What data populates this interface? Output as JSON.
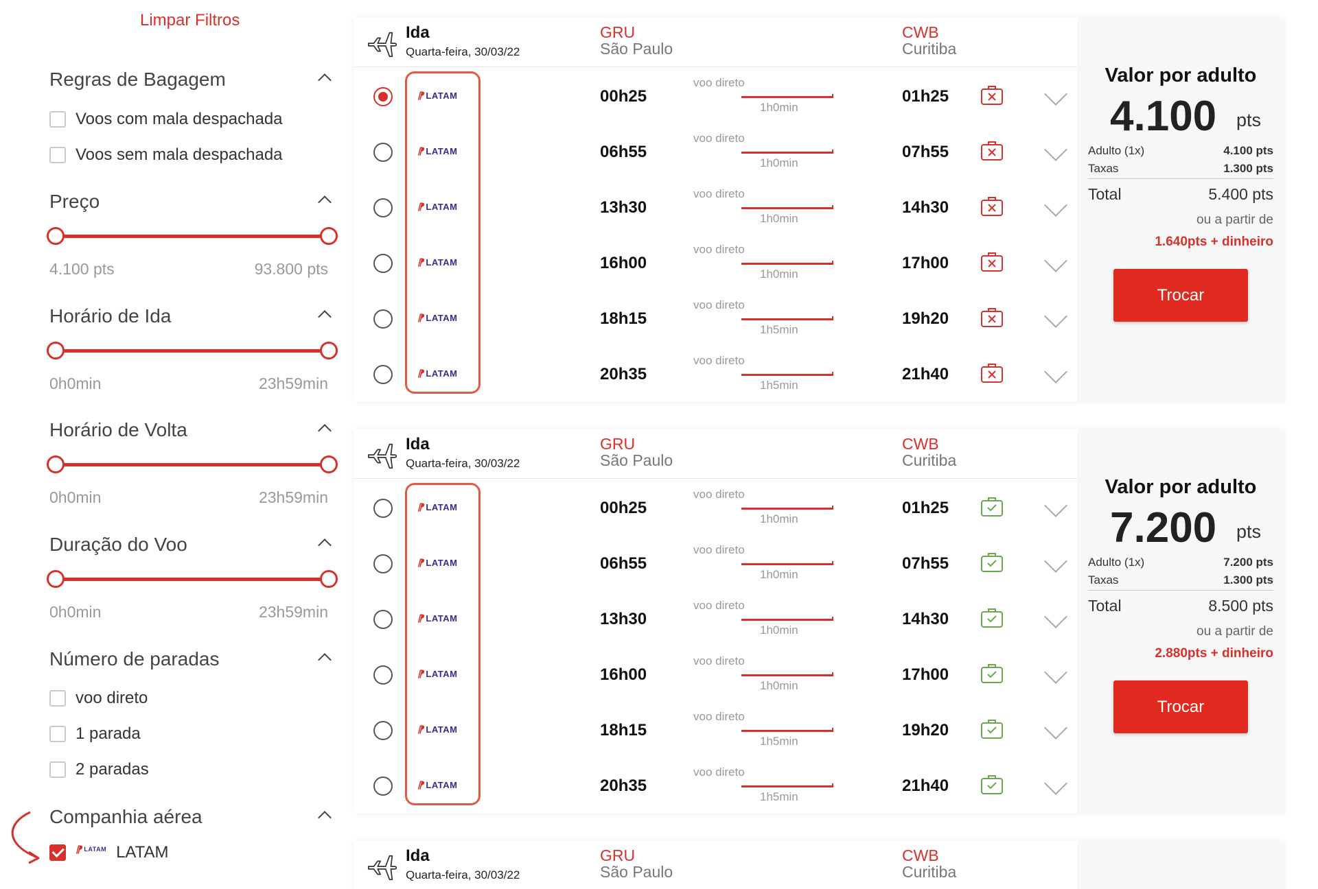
{
  "sidebar": {
    "clear_filters": "Limpar Filtros",
    "baggage": {
      "title": "Regras de Bagagem",
      "options": [
        "Voos com mala despachada",
        "Voos sem mala despachada"
      ]
    },
    "price": {
      "title": "Preço",
      "min": "4.100 pts",
      "max": "93.800 pts"
    },
    "departure_time": {
      "title": "Horário de Ida",
      "min": "0h0min",
      "max": "23h59min"
    },
    "return_time": {
      "title": "Horário de Volta",
      "min": "0h0min",
      "max": "23h59min"
    },
    "duration": {
      "title": "Duração do Voo",
      "min": "0h0min",
      "max": "23h59min"
    },
    "stops": {
      "title": "Número de paradas",
      "options": [
        "voo direto",
        "1 parada",
        "2 paradas"
      ]
    },
    "airline": {
      "title": "Companhia aérea",
      "option": "LATAM",
      "checked": true
    }
  },
  "logo_text": "LATAM",
  "colors": {
    "accent": "#d6312b",
    "bag_excluded": "#d6312b",
    "bag_included": "#6aa84f"
  },
  "cards": [
    {
      "label": "Ida",
      "date": "Quarta-feira, 30/03/22",
      "origin_code": "GRU",
      "origin_city": "São Paulo",
      "dest_code": "CWB",
      "dest_city": "Curitiba",
      "bag_icon": "baggage-excluded-icon",
      "flights": [
        {
          "dep": "00h25",
          "arr": "01h25",
          "stops": "voo direto",
          "duration": "1h0min",
          "selected": true
        },
        {
          "dep": "06h55",
          "arr": "07h55",
          "stops": "voo direto",
          "duration": "1h0min",
          "selected": false
        },
        {
          "dep": "13h30",
          "arr": "14h30",
          "stops": "voo direto",
          "duration": "1h0min",
          "selected": false
        },
        {
          "dep": "16h00",
          "arr": "17h00",
          "stops": "voo direto",
          "duration": "1h0min",
          "selected": false
        },
        {
          "dep": "18h15",
          "arr": "19h20",
          "stops": "voo direto",
          "duration": "1h5min",
          "selected": false
        },
        {
          "dep": "20h35",
          "arr": "21h40",
          "stops": "voo direto",
          "duration": "1h5min",
          "selected": false
        }
      ],
      "price": {
        "title": "Valor por adulto",
        "value": "4.100",
        "unit": "pts",
        "adult_label": "Adulto (1x)",
        "adult_value": "4.100 pts",
        "tax_label": "Taxas",
        "tax_value": "1.300 pts",
        "total_label": "Total",
        "total_value": "5.400 pts",
        "or_label": "ou a partir de",
        "cash_value": "1.640pts + dinheiro",
        "button": "Trocar"
      }
    },
    {
      "label": "Ida",
      "date": "Quarta-feira, 30/03/22",
      "origin_code": "GRU",
      "origin_city": "São Paulo",
      "dest_code": "CWB",
      "dest_city": "Curitiba",
      "bag_icon": "baggage-included-icon",
      "flights": [
        {
          "dep": "00h25",
          "arr": "01h25",
          "stops": "voo direto",
          "duration": "1h0min",
          "selected": false
        },
        {
          "dep": "06h55",
          "arr": "07h55",
          "stops": "voo direto",
          "duration": "1h0min",
          "selected": false
        },
        {
          "dep": "13h30",
          "arr": "14h30",
          "stops": "voo direto",
          "duration": "1h0min",
          "selected": false
        },
        {
          "dep": "16h00",
          "arr": "17h00",
          "stops": "voo direto",
          "duration": "1h0min",
          "selected": false
        },
        {
          "dep": "18h15",
          "arr": "19h20",
          "stops": "voo direto",
          "duration": "1h5min",
          "selected": false
        },
        {
          "dep": "20h35",
          "arr": "21h40",
          "stops": "voo direto",
          "duration": "1h5min",
          "selected": false
        }
      ],
      "price": {
        "title": "Valor por adulto",
        "value": "7.200",
        "unit": "pts",
        "adult_label": "Adulto (1x)",
        "adult_value": "7.200 pts",
        "tax_label": "Taxas",
        "tax_value": "1.300 pts",
        "total_label": "Total",
        "total_value": "8.500 pts",
        "or_label": "ou a partir de",
        "cash_value": "2.880pts + dinheiro",
        "button": "Trocar"
      }
    },
    {
      "label": "Ida",
      "date": "Quarta-feira, 30/03/22",
      "origin_code": "GRU",
      "origin_city": "São Paulo",
      "dest_code": "CWB",
      "dest_city": "Curitiba"
    }
  ]
}
